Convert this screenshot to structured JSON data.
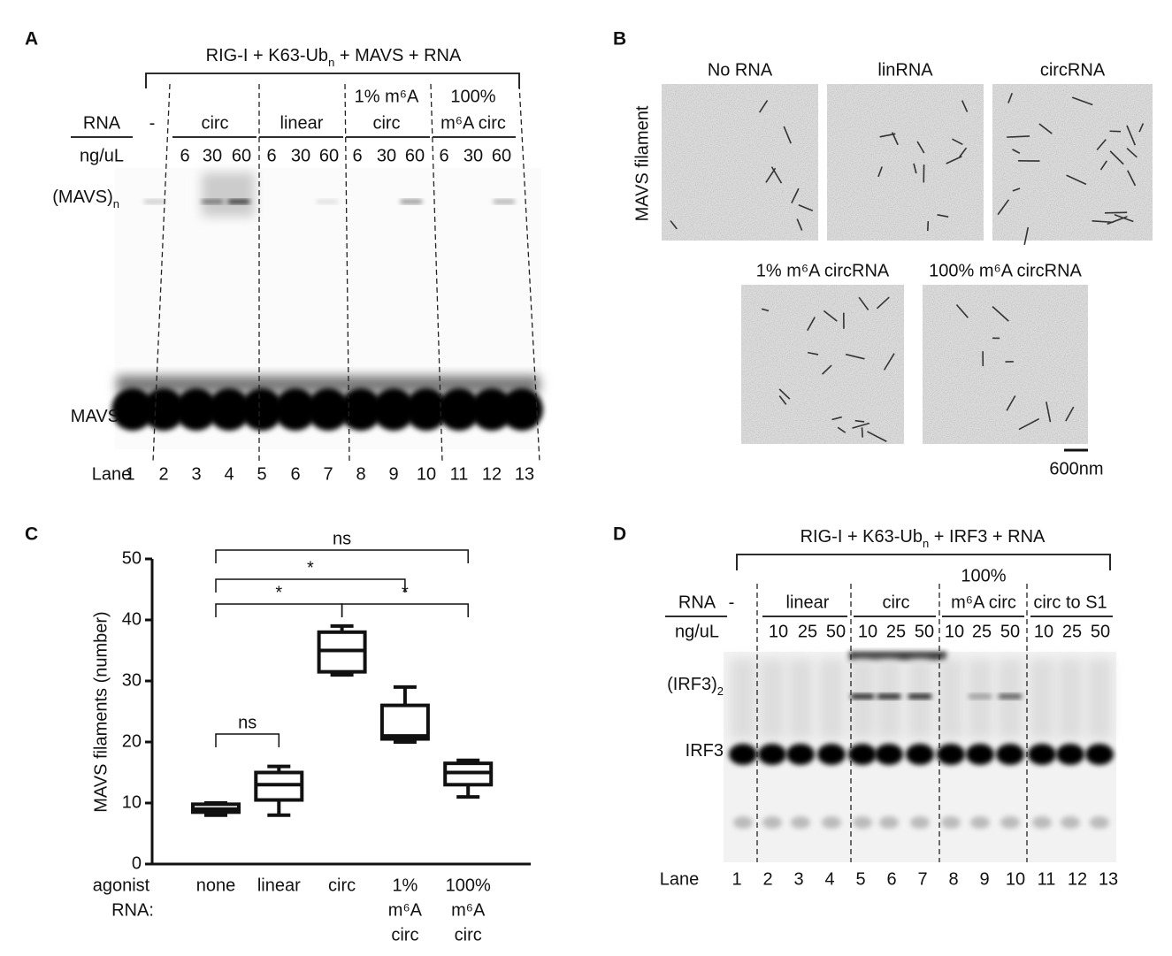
{
  "panel_a": {
    "label": "A",
    "title": [
      "RIG-I + K63-Ub",
      "n",
      " + MAVS + RNA"
    ],
    "rna_header": "RNA",
    "groups": [
      [
        "-"
      ],
      [
        "circ"
      ],
      [
        "linear"
      ],
      [
        "1% m⁶A",
        "circ"
      ],
      [
        "100%",
        "m⁶A circ"
      ]
    ],
    "conc_header": "ng/uL",
    "concentrations": [
      6,
      30,
      60,
      6,
      30,
      60,
      6,
      30,
      60,
      6,
      30,
      60
    ],
    "band_labels": [
      [
        "(MAVS)",
        "n"
      ],
      [
        "MAVS"
      ]
    ],
    "lane_header": "Lane",
    "lanes": [
      1,
      2,
      3,
      4,
      5,
      6,
      7,
      8,
      9,
      10,
      11,
      12,
      13
    ]
  },
  "panel_b": {
    "label": "B",
    "ylabel": "MAVS filament",
    "images": [
      "No RNA",
      "linRNA",
      "circRNA",
      "1% m⁶A circRNA",
      "100% m⁶A circRNA"
    ],
    "scale_bar": "600nm"
  },
  "chart_data": {
    "type": "box",
    "label": "C",
    "ylabel": "MAVS filaments (number)",
    "xlabel": [
      "agonist",
      "RNA:"
    ],
    "categories": [
      [
        "none"
      ],
      [
        "linear"
      ],
      [
        "circ"
      ],
      [
        "1%",
        "m⁶A",
        "circ"
      ],
      [
        "100%",
        "m⁶A",
        "circ"
      ]
    ],
    "values": [
      {
        "min": 8,
        "q1": 8.5,
        "median": 9,
        "q3": 9.8,
        "max": 10
      },
      {
        "min": 8,
        "q1": 10.5,
        "median": 13,
        "q3": 15,
        "max": 16
      },
      {
        "min": 31,
        "q1": 31.5,
        "median": 35,
        "q3": 38,
        "max": 39
      },
      {
        "min": 20,
        "q1": 20.5,
        "median": 21,
        "q3": 26,
        "max": 29
      },
      {
        "min": 11,
        "q1": 13,
        "median": 15,
        "q3": 16.5,
        "max": 17
      }
    ],
    "color": "#111111",
    "ylim": [
      0,
      50
    ],
    "yticks": [
      0,
      10,
      20,
      30,
      40,
      50
    ],
    "comparisons": [
      {
        "label": "ns",
        "between": [
          0,
          4
        ]
      },
      {
        "label": "*",
        "between": [
          0,
          3
        ]
      },
      {
        "label": "*",
        "between": [
          0,
          2
        ]
      },
      {
        "label": "*",
        "between": [
          2,
          4
        ]
      },
      {
        "label": "ns",
        "between": [
          0,
          1
        ]
      }
    ]
  },
  "panel_d": {
    "label": "D",
    "title": [
      "RIG-I + K63-Ub",
      "n",
      " + IRF3 + RNA"
    ],
    "rna_header": "RNA",
    "groups": [
      [
        "-"
      ],
      [
        "linear"
      ],
      [
        "circ"
      ],
      [
        "100%",
        "m⁶A circ"
      ],
      [
        "circ to S1"
      ]
    ],
    "conc_header": "ng/uL",
    "concentrations": [
      10,
      25,
      50,
      10,
      25,
      50,
      10,
      25,
      50,
      10,
      25,
      50
    ],
    "band_labels": [
      [
        "(IRF3)",
        "2"
      ],
      [
        "IRF3"
      ]
    ],
    "lane_header": "Lane",
    "lanes": [
      1,
      2,
      3,
      4,
      5,
      6,
      7,
      8,
      9,
      10,
      11,
      12,
      13
    ]
  }
}
